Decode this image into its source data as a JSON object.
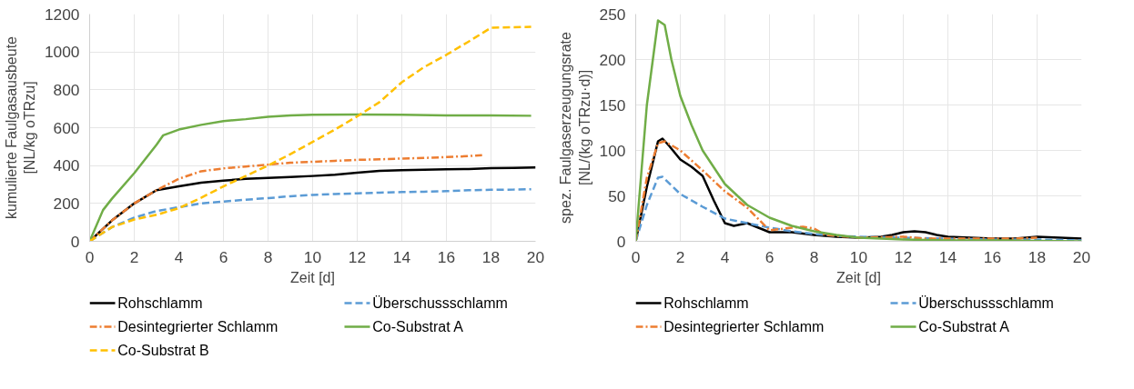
{
  "chart_data": [
    {
      "type": "line",
      "xlabel": "Zeit [d]",
      "ylabel": "kumulierte Faulgasausbeute [NL/kg oTRzu]",
      "xlim": [
        0,
        20
      ],
      "xticks": [
        0,
        2,
        4,
        6,
        8,
        10,
        12,
        14,
        16,
        18,
        20
      ],
      "ylim": [
        0,
        1200
      ],
      "yticks": [
        0,
        200,
        400,
        600,
        800,
        1000,
        1200
      ],
      "grid": true,
      "legend": "bottom",
      "marker": "none",
      "series": [
        {
          "name": "Rohschlamm",
          "color": "#000000",
          "line_style": "solid",
          "x": [
            0,
            1,
            2,
            3,
            4,
            5,
            6,
            7,
            8,
            9,
            10,
            11,
            12,
            13,
            14,
            15,
            16,
            17,
            18,
            19,
            20
          ],
          "values": [
            0,
            110,
            200,
            270,
            290,
            310,
            320,
            330,
            335,
            340,
            345,
            352,
            362,
            372,
            376,
            378,
            380,
            382,
            386,
            388,
            390
          ]
        },
        {
          "name": "Überschussschlamm",
          "color": "#5b9bd5",
          "line_style": "dashed",
          "x": [
            0,
            1,
            2,
            3,
            4,
            5,
            6,
            7,
            8,
            9,
            10,
            11,
            12,
            13,
            14,
            15,
            16,
            17,
            18,
            19,
            19.8
          ],
          "values": [
            0,
            75,
            125,
            160,
            180,
            200,
            210,
            220,
            228,
            238,
            245,
            250,
            253,
            257,
            260,
            262,
            265,
            270,
            272,
            273,
            275
          ]
        },
        {
          "name": "Desintegrierter Schlamm",
          "color": "#ed7d31",
          "line_style": "dashdot",
          "x": [
            0,
            1,
            2,
            3,
            4,
            5,
            6,
            7,
            8,
            9,
            10,
            11,
            12,
            13,
            14,
            15,
            16,
            17,
            17.6
          ],
          "values": [
            0,
            110,
            200,
            270,
            330,
            370,
            385,
            395,
            405,
            415,
            420,
            425,
            430,
            433,
            437,
            440,
            445,
            450,
            455
          ]
        },
        {
          "name": "Co-Substrat A",
          "color": "#70ad47",
          "line_style": "solid",
          "x": [
            0,
            0.6,
            1,
            2,
            3,
            3.3,
            4,
            5,
            6,
            7,
            8,
            9,
            10,
            12,
            14,
            16,
            18,
            19.8
          ],
          "values": [
            0,
            165,
            225,
            360,
            510,
            560,
            590,
            615,
            635,
            645,
            658,
            665,
            668,
            670,
            668,
            665,
            665,
            663
          ]
        },
        {
          "name": "Co-Substrat B",
          "color": "#ffc000",
          "line_style": "dashed",
          "x": [
            0,
            1,
            2,
            3,
            4,
            5,
            6,
            7,
            8,
            9,
            10,
            11,
            12,
            13,
            14,
            15,
            16,
            17,
            18,
            19.8
          ],
          "values": [
            0,
            75,
            115,
            140,
            175,
            230,
            290,
            345,
            400,
            460,
            525,
            590,
            660,
            735,
            840,
            920,
            985,
            1055,
            1128,
            1133
          ]
        }
      ]
    },
    {
      "type": "line",
      "xlabel": "Zeit [d]",
      "ylabel": "spez. Faulgaserzeugungsrate [NL/(kg oTRzu·d)]",
      "xlim": [
        0,
        20
      ],
      "xticks": [
        0,
        2,
        4,
        6,
        8,
        10,
        12,
        14,
        16,
        18,
        20
      ],
      "ylim": [
        0,
        250
      ],
      "yticks": [
        0,
        50,
        100,
        150,
        200,
        250
      ],
      "grid": true,
      "legend": "bottom",
      "marker": "none",
      "series": [
        {
          "name": "Rohschlamm",
          "color": "#000000",
          "line_style": "solid",
          "x": [
            0,
            0.5,
            1,
            1.2,
            1.5,
            2,
            2.5,
            3,
            3.5,
            4,
            4.4,
            5,
            5.5,
            6,
            7,
            8,
            9,
            10,
            11,
            11.5,
            12,
            12.5,
            13,
            13.5,
            14,
            15,
            16,
            17,
            18,
            19,
            20
          ],
          "values": [
            0,
            60,
            110,
            113,
            105,
            90,
            82,
            72,
            45,
            20,
            17,
            20,
            15,
            10,
            10,
            7,
            5,
            4,
            5,
            7,
            10,
            11,
            10,
            7,
            5,
            4,
            3,
            3,
            5,
            4,
            3
          ]
        },
        {
          "name": "Überschussschlamm",
          "color": "#5b9bd5",
          "line_style": "dashed",
          "x": [
            0,
            0.5,
            1,
            1.2,
            2,
            3,
            4,
            5,
            6,
            7,
            8,
            9,
            10,
            12,
            14,
            16,
            18,
            20
          ],
          "values": [
            0,
            40,
            70,
            71,
            52,
            38,
            25,
            20,
            15,
            11,
            8,
            6,
            5,
            4,
            3,
            2,
            2,
            1
          ]
        },
        {
          "name": "Desintegrierter Schlamm",
          "color": "#ed7d31",
          "line_style": "dashdot",
          "x": [
            0,
            0.5,
            1,
            1.3,
            2,
            3,
            4,
            5,
            6,
            7,
            7.5,
            8,
            8.5,
            10,
            12,
            13,
            14,
            16,
            17,
            18
          ],
          "values": [
            0,
            70,
            108,
            110,
            100,
            78,
            55,
            37,
            12,
            15,
            16,
            14,
            7,
            4,
            5,
            3,
            3,
            3,
            3,
            4
          ]
        },
        {
          "name": "Co-Substrat A",
          "color": "#70ad47",
          "line_style": "solid",
          "x": [
            0,
            0.5,
            1,
            1.3,
            1.6,
            2,
            2.5,
            3,
            4,
            5,
            6,
            7,
            8,
            9,
            10,
            12,
            14,
            16,
            20
          ],
          "values": [
            0,
            150,
            243,
            238,
            200,
            160,
            128,
            100,
            63,
            40,
            26,
            17,
            11,
            7,
            4,
            2,
            1,
            1,
            0
          ]
        }
      ]
    }
  ]
}
